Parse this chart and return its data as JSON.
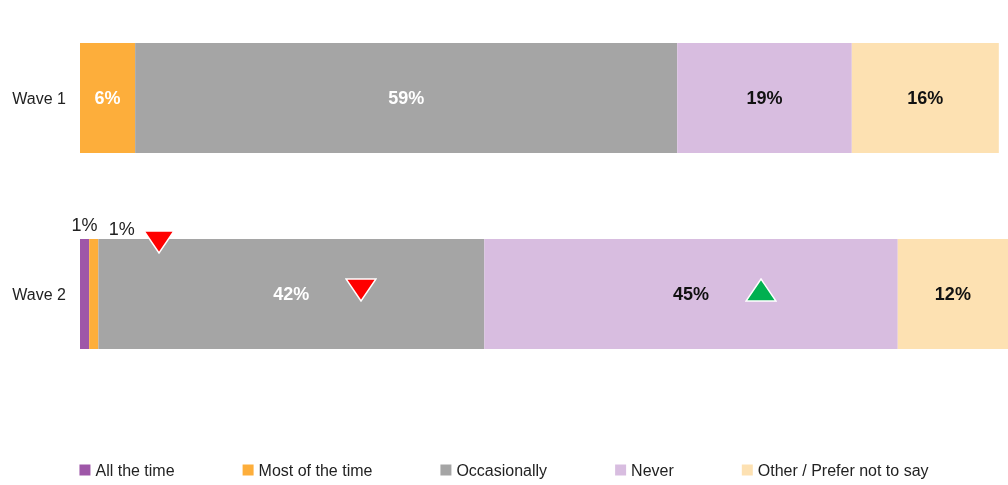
{
  "chart_data": {
    "type": "bar",
    "orientation": "horizontal",
    "stacked": true,
    "categories": [
      "Wave 1",
      "Wave 2"
    ],
    "legend": "bottom",
    "series": [
      {
        "name": "All the time",
        "color": "#9e57a8",
        "values": [
          0,
          1
        ],
        "value_labels": [
          null,
          "1%"
        ]
      },
      {
        "name": "Most of the time",
        "color": "#fdae3b",
        "values": [
          6,
          1
        ],
        "value_labels": [
          "6%",
          "1%"
        ]
      },
      {
        "name": "Occasionally",
        "color": "#a5a5a5",
        "values": [
          59,
          42
        ],
        "value_labels": [
          "59%",
          "42%"
        ]
      },
      {
        "name": "Never",
        "color": "#d8bde0",
        "values": [
          19,
          45
        ],
        "value_labels": [
          "19%",
          "45%"
        ]
      },
      {
        "name": "Other / Prefer not to say",
        "color": "#fde1b2",
        "values": [
          16,
          12
        ],
        "value_labels": [
          "16%",
          "12%"
        ]
      }
    ]
  }
}
